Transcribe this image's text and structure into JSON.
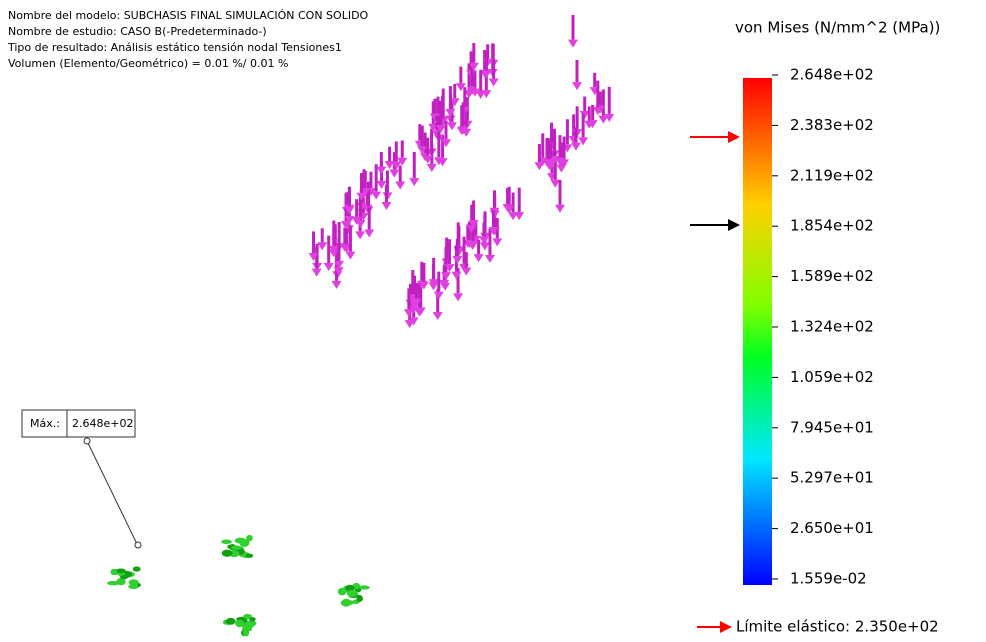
{
  "header": {
    "lines": [
      "Nombre del modelo: SUBCHASIS FINAL SIMULACIÓN CON SOLIDO",
      "Nombre de estudio: CASO B(-Predeterminado-)",
      "Tipo de resultado: Análisis estático tensión nodal Tensiones1",
      "Volumen (Elemento/Geométrico) = 0.01 %/ 0.01 %"
    ]
  },
  "legend": {
    "title": "von Mises (N/mm^2 (MPa))",
    "labels": [
      "2.648e+02",
      "2.383e+02",
      "2.119e+02",
      "1.854e+02",
      "1.589e+02",
      "1.324e+02",
      "1.059e+02",
      "7.945e+01",
      "5.297e+01",
      "2.650e+01",
      "1.559e-02"
    ],
    "yield_label": "Límite elástico: 2.350e+02"
  },
  "max_box": {
    "label": "Máx.:",
    "value": "2.648e+02"
  }
}
